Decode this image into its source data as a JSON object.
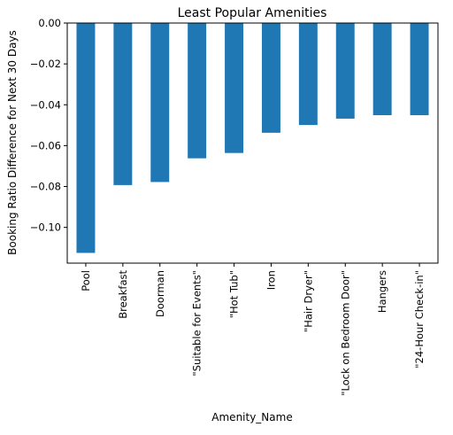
{
  "chart_data": {
    "type": "bar",
    "title": "Least Popular Amenities",
    "xlabel": "Amenity_Name",
    "ylabel": "Booking Ratio Difference for Next 30 Days",
    "categories": [
      "Pool",
      "Breakfast",
      "Doorman",
      "\"Suitable for Events\"",
      "\"Hot Tub\"",
      "Iron",
      "\"Hair Dryer\"",
      "\"Lock on Bedroom Door\"",
      "Hangers",
      "\"24-Hour Check-in\""
    ],
    "values": [
      -0.1125,
      -0.0793,
      -0.0778,
      -0.0662,
      -0.0636,
      -0.0537,
      -0.0499,
      -0.0468,
      -0.0451,
      -0.0451
    ],
    "ylim": [
      -0.1175,
      0.0
    ],
    "yticks": [
      0.0,
      -0.02,
      -0.04,
      -0.06,
      -0.08,
      -0.1
    ],
    "ytick_labels": [
      "0.00",
      "−0.02",
      "−0.04",
      "−0.06",
      "−0.08",
      "−0.10"
    ],
    "bar_color": "#1f77b4",
    "grid": false,
    "legend": "none"
  }
}
